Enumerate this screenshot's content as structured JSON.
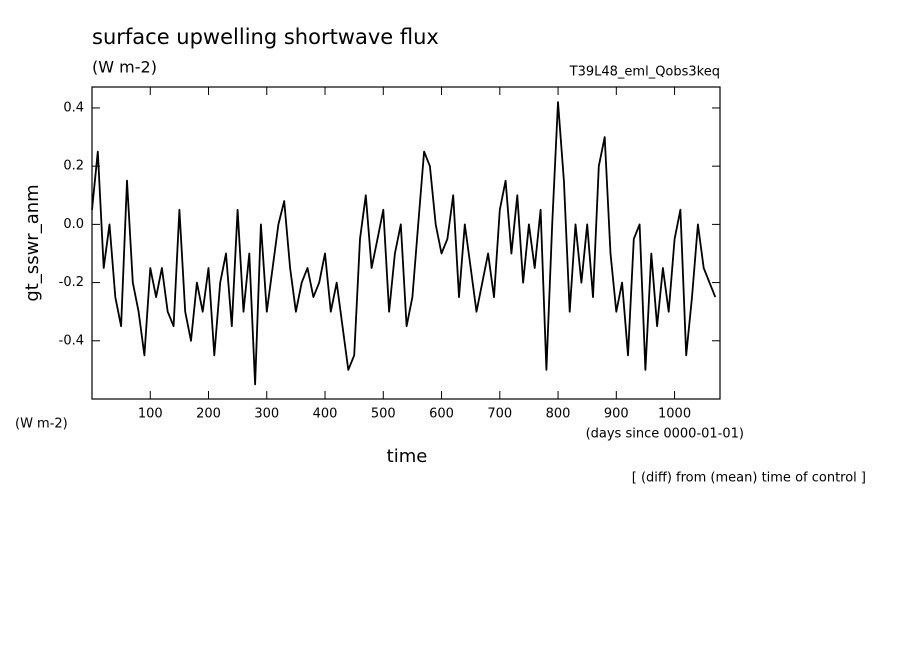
{
  "chart_data": {
    "type": "line",
    "title": "surface upwelling shortwave flux",
    "subtitle": "(W m-2)",
    "run_label": "T39L48_eml_Qobs3keq",
    "y_label": "gt_sswr_anm",
    "y_units": "(W m-2)",
    "x_label": "time",
    "x_units": "(days since 0000-01-01)",
    "annotation": "[ (diff) from (mean) time of control ]",
    "xlim": [
      0,
      1078
    ],
    "ylim": [
      -0.6,
      0.472
    ],
    "xticks": [
      100,
      200,
      300,
      400,
      500,
      600,
      700,
      800,
      900,
      1000
    ],
    "yticks": [
      -0.4,
      -0.2,
      {
        "value": 0,
        "label": "0.0"
      },
      0.2,
      0.4
    ],
    "x": [
      0,
      10,
      20,
      30,
      40,
      50,
      60,
      70,
      80,
      90,
      100,
      110,
      120,
      130,
      140,
      150,
      160,
      170,
      180,
      190,
      200,
      210,
      220,
      230,
      240,
      250,
      260,
      270,
      280,
      290,
      300,
      310,
      320,
      330,
      340,
      350,
      360,
      370,
      380,
      390,
      400,
      410,
      420,
      430,
      440,
      450,
      460,
      470,
      480,
      490,
      500,
      510,
      520,
      530,
      540,
      550,
      560,
      570,
      580,
      590,
      600,
      610,
      620,
      630,
      640,
      650,
      660,
      670,
      680,
      690,
      700,
      710,
      720,
      730,
      740,
      750,
      760,
      770,
      780,
      790,
      800,
      810,
      820,
      830,
      840,
      850,
      860,
      870,
      880,
      890,
      900,
      910,
      920,
      930,
      940,
      950,
      960,
      970,
      980,
      990,
      1000,
      1010,
      1020,
      1030,
      1040,
      1050,
      1060,
      1070
    ],
    "series": [
      {
        "color": "#000000",
        "values": [
          0.05,
          0.25,
          -0.15,
          0.0,
          -0.25,
          -0.35,
          0.15,
          -0.2,
          -0.3,
          -0.45,
          -0.15,
          -0.25,
          -0.15,
          -0.3,
          -0.35,
          0.05,
          -0.3,
          -0.4,
          -0.2,
          -0.3,
          -0.15,
          -0.45,
          -0.2,
          -0.1,
          -0.35,
          0.05,
          -0.3,
          -0.1,
          -0.55,
          0.0,
          -0.3,
          -0.15,
          0.0,
          0.08,
          -0.15,
          -0.3,
          -0.2,
          -0.15,
          -0.25,
          -0.2,
          -0.1,
          -0.3,
          -0.2,
          -0.35,
          -0.5,
          -0.45,
          -0.05,
          0.1,
          -0.15,
          -0.05,
          0.05,
          -0.3,
          -0.1,
          0.0,
          -0.35,
          -0.25,
          0.0,
          0.25,
          0.2,
          0.0,
          -0.1,
          -0.05,
          0.1,
          -0.25,
          0.0,
          -0.15,
          -0.3,
          -0.2,
          -0.1,
          -0.25,
          0.05,
          0.15,
          -0.1,
          0.1,
          -0.2,
          0.0,
          -0.15,
          0.05,
          -0.5,
          0.0,
          0.42,
          0.15,
          -0.3,
          0.0,
          -0.2,
          0.0,
          -0.25,
          0.2,
          0.3,
          -0.1,
          -0.3,
          -0.2,
          -0.45,
          -0.05,
          0.0,
          -0.5,
          -0.1,
          -0.35,
          -0.15,
          -0.3,
          -0.05,
          0.05,
          -0.45,
          -0.25,
          0.0,
          -0.15,
          -0.2,
          -0.25
        ]
      }
    ]
  }
}
